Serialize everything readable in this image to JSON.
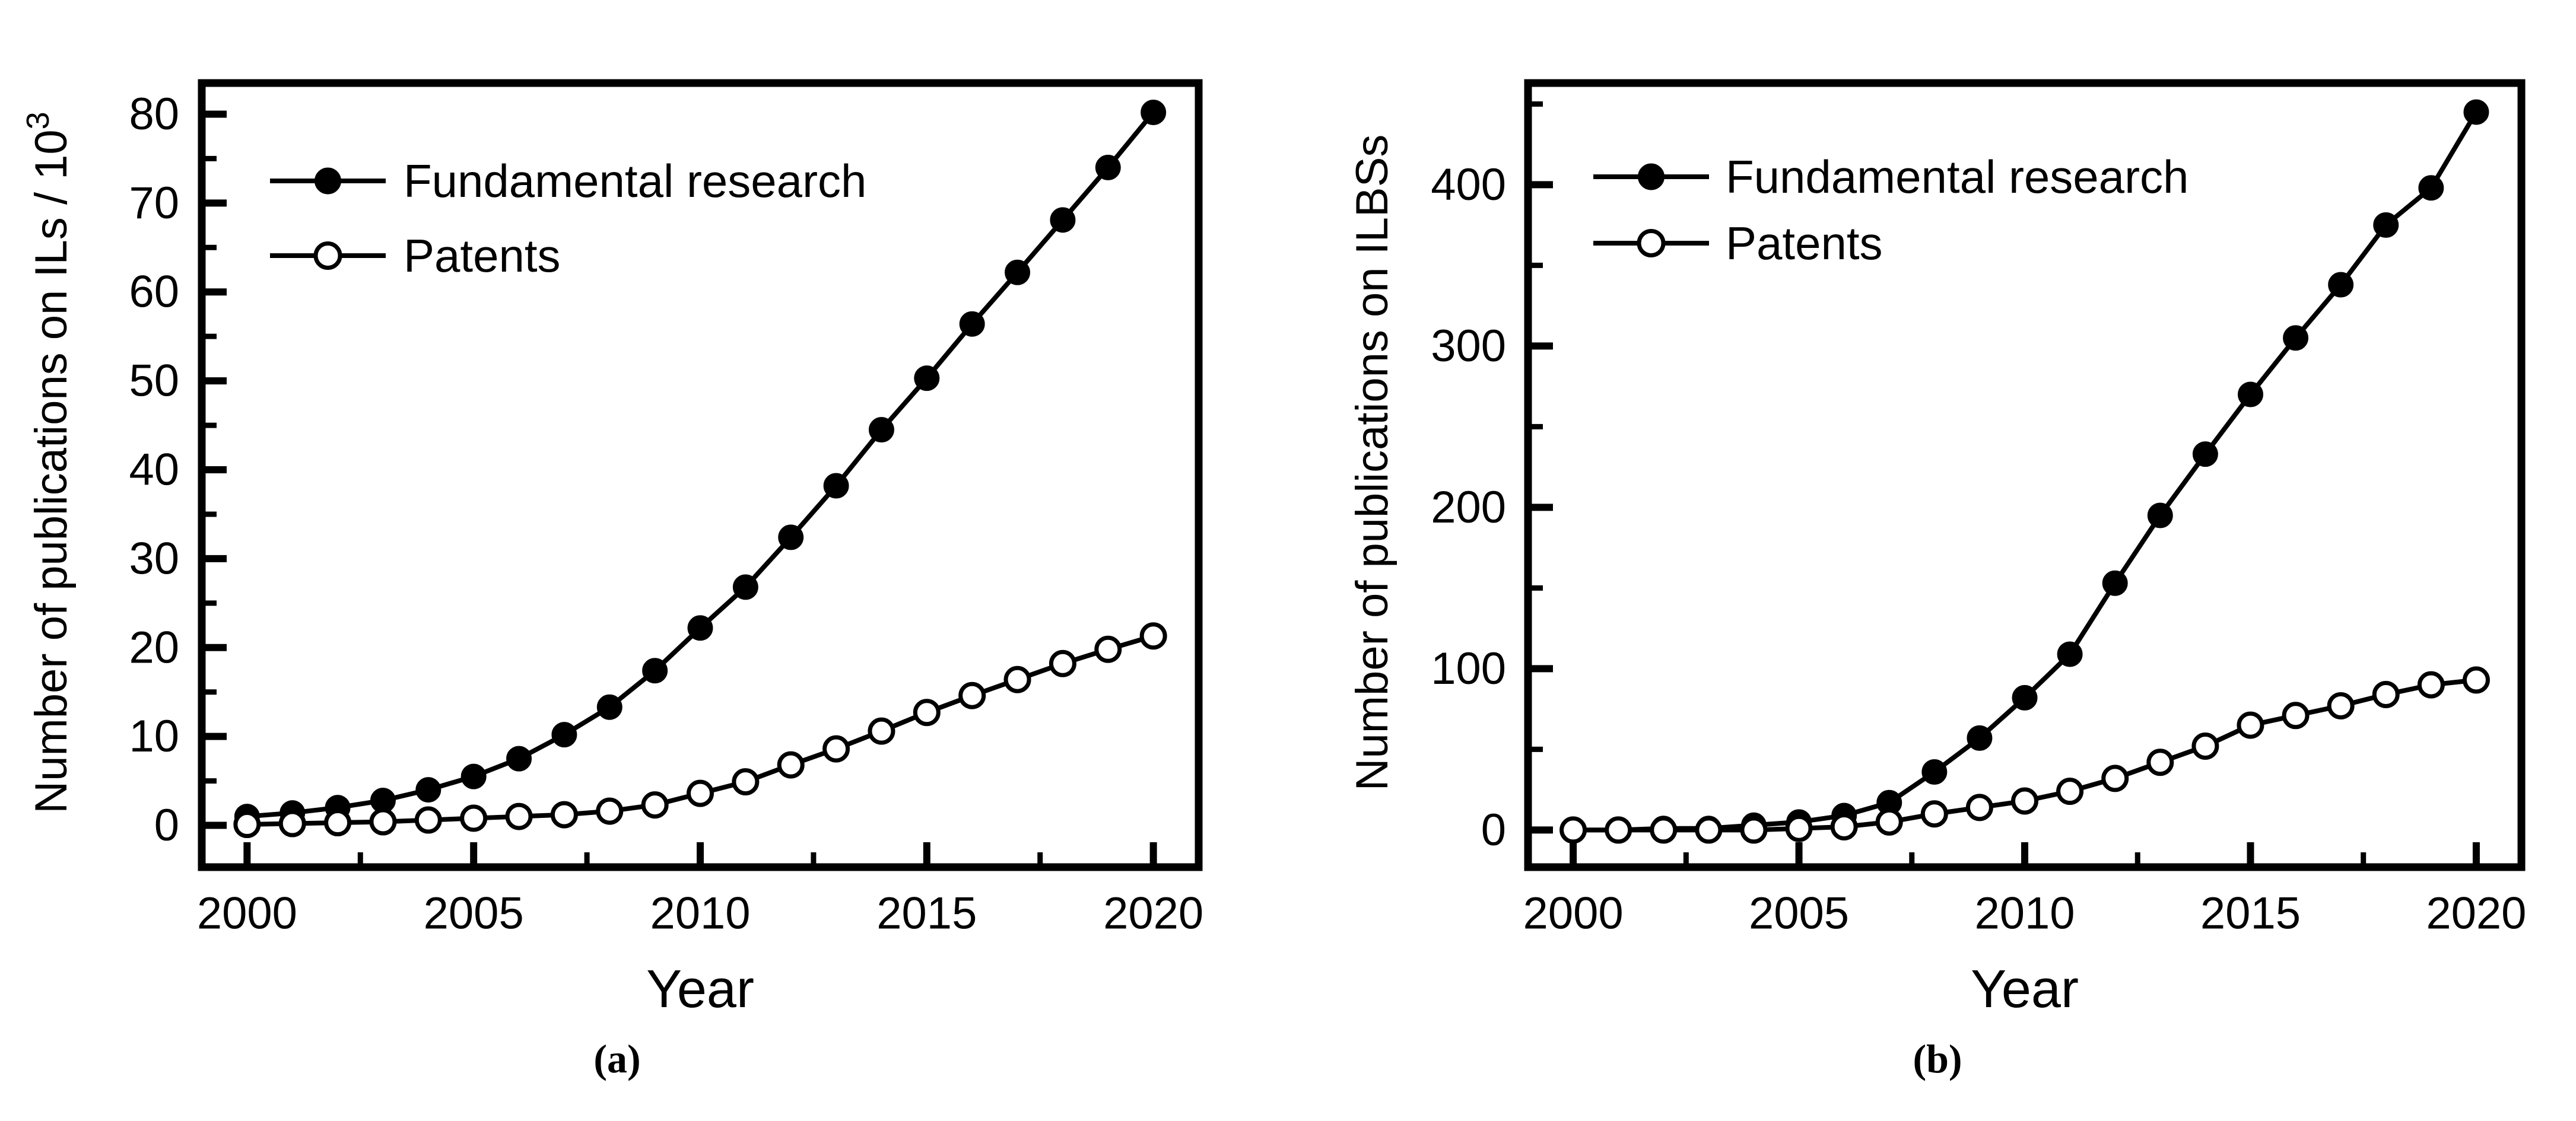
{
  "figure": {
    "background_color": "#ffffff",
    "foreground_color": "#000000",
    "description": "Two-panel line chart of publications per year"
  },
  "chart_data": [
    {
      "id": "a",
      "type": "line",
      "panel_tag": "(a)",
      "xlabel": "Year",
      "ylabel_base": "Number of publications on ILs / 10",
      "ylabel_sup": "3",
      "x": [
        2000,
        2001,
        2002,
        2003,
        2004,
        2005,
        2006,
        2007,
        2008,
        2009,
        2010,
        2011,
        2012,
        2013,
        2014,
        2015,
        2016,
        2017,
        2018,
        2019,
        2020
      ],
      "series": [
        {
          "name": "Fundamental research",
          "marker": "filled",
          "values": [
            1.0,
            1.4,
            2.0,
            2.8,
            4.0,
            5.5,
            7.5,
            10.2,
            13.3,
            17.4,
            22.2,
            26.8,
            32.4,
            38.2,
            44.5,
            50.3,
            56.4,
            62.2,
            68.1,
            74.0,
            80.2
          ]
        },
        {
          "name": "Patents",
          "marker": "open",
          "values": [
            0.1,
            0.2,
            0.3,
            0.4,
            0.6,
            0.8,
            1.0,
            1.2,
            1.6,
            2.3,
            3.6,
            4.9,
            6.8,
            8.6,
            10.6,
            12.7,
            14.6,
            16.4,
            18.2,
            19.8,
            21.3
          ]
        }
      ],
      "xlim": [
        1999,
        2021
      ],
      "ylim": [
        -4.7,
        83.5
      ],
      "xticks": [
        2000,
        2005,
        2010,
        2015,
        2020
      ],
      "xticks_minor": [
        2002.5,
        2007.5,
        2012.5,
        2017.5
      ],
      "yticks": [
        0,
        10,
        20,
        30,
        40,
        50,
        60,
        70,
        80
      ],
      "yticks_minor": [
        5,
        15,
        25,
        35,
        45,
        55,
        65,
        75
      ],
      "grid": false,
      "legend_position": "top-left"
    },
    {
      "id": "b",
      "type": "line",
      "panel_tag": "(b)",
      "xlabel": "Year",
      "ylabel_base": "Number of publications on ILBSs",
      "ylabel_sup": "",
      "x": [
        2000,
        2001,
        2002,
        2003,
        2004,
        2005,
        2006,
        2007,
        2008,
        2009,
        2010,
        2011,
        2012,
        2013,
        2014,
        2015,
        2016,
        2017,
        2018,
        2019,
        2020
      ],
      "series": [
        {
          "name": "Fundamental research",
          "marker": "filled",
          "values": [
            0,
            0,
            1,
            1,
            3,
            5,
            9,
            17,
            36,
            57,
            82,
            109,
            153,
            195,
            233,
            270,
            305,
            338,
            375,
            398,
            445
          ]
        },
        {
          "name": "Patents",
          "marker": "open",
          "values": [
            0,
            0,
            0,
            0,
            0,
            1,
            2,
            5,
            10,
            14,
            18,
            24,
            32,
            42,
            52,
            65,
            71,
            77,
            84,
            90,
            93
          ]
        }
      ],
      "xlim": [
        1999,
        2021
      ],
      "ylim": [
        -23,
        463
      ],
      "xticks": [
        2000,
        2005,
        2010,
        2015,
        2020
      ],
      "xticks_minor": [
        2002.5,
        2007.5,
        2012.5,
        2017.5
      ],
      "yticks": [
        0,
        100,
        200,
        300,
        400
      ],
      "yticks_minor": [
        50,
        150,
        250,
        350,
        450
      ],
      "grid": false,
      "legend_position": "top-left"
    }
  ]
}
